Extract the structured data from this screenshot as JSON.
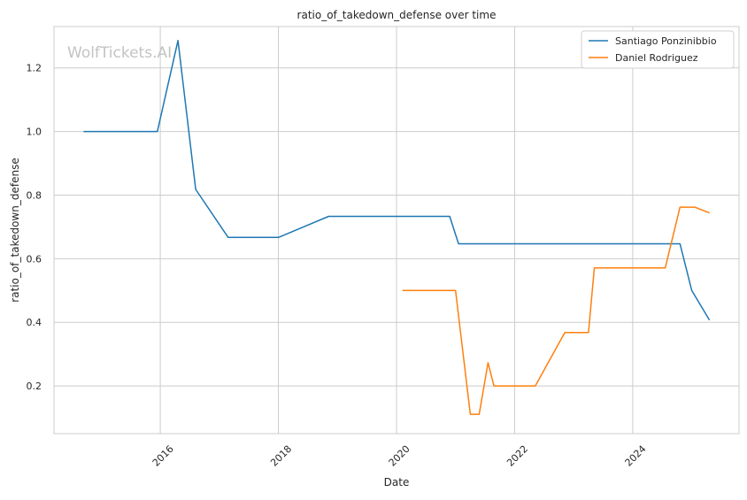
{
  "chart_data": {
    "type": "line",
    "title": "ratio_of_takedown_defense over time",
    "xlabel": "Date",
    "ylabel": "ratio_of_takedown_defense",
    "watermark": "WolfTickets.AI",
    "xlim": [
      2014.2,
      2025.8
    ],
    "ylim": [
      0.05,
      1.33
    ],
    "x_ticks": [
      {
        "value": 2016,
        "label": "2016"
      },
      {
        "value": 2018,
        "label": "2018"
      },
      {
        "value": 2020,
        "label": "2020"
      },
      {
        "value": 2022,
        "label": "2022"
      },
      {
        "value": 2024,
        "label": "2024"
      }
    ],
    "y_ticks": [
      {
        "value": 0.2,
        "label": "0.2"
      },
      {
        "value": 0.4,
        "label": "0.4"
      },
      {
        "value": 0.6,
        "label": "0.6"
      },
      {
        "value": 0.8,
        "label": "0.8"
      },
      {
        "value": 1.0,
        "label": "1.0"
      },
      {
        "value": 1.2,
        "label": "1.2"
      }
    ],
    "grid": true,
    "legend_position": "top-right",
    "series": [
      {
        "name": "Santiago Ponzinibbio",
        "color": "#1f77b4",
        "points": [
          {
            "x": 2014.7,
            "y": 1.0
          },
          {
            "x": 2015.95,
            "y": 1.0
          },
          {
            "x": 2016.3,
            "y": 1.286
          },
          {
            "x": 2016.6,
            "y": 0.818
          },
          {
            "x": 2017.15,
            "y": 0.667
          },
          {
            "x": 2018.0,
            "y": 0.667
          },
          {
            "x": 2018.85,
            "y": 0.733
          },
          {
            "x": 2020.9,
            "y": 0.733
          },
          {
            "x": 2021.05,
            "y": 0.647
          },
          {
            "x": 2024.8,
            "y": 0.647
          },
          {
            "x": 2025.0,
            "y": 0.5
          },
          {
            "x": 2025.3,
            "y": 0.407
          }
        ]
      },
      {
        "name": "Daniel Rodriguez",
        "color": "#ff7f0e",
        "points": [
          {
            "x": 2020.1,
            "y": 0.5
          },
          {
            "x": 2021.0,
            "y": 0.5
          },
          {
            "x": 2021.25,
            "y": 0.111
          },
          {
            "x": 2021.4,
            "y": 0.111
          },
          {
            "x": 2021.55,
            "y": 0.273
          },
          {
            "x": 2021.65,
            "y": 0.2
          },
          {
            "x": 2022.35,
            "y": 0.2
          },
          {
            "x": 2022.85,
            "y": 0.368
          },
          {
            "x": 2023.25,
            "y": 0.368
          },
          {
            "x": 2023.35,
            "y": 0.571
          },
          {
            "x": 2024.55,
            "y": 0.571
          },
          {
            "x": 2024.8,
            "y": 0.762
          },
          {
            "x": 2025.05,
            "y": 0.762
          },
          {
            "x": 2025.3,
            "y": 0.744
          }
        ]
      }
    ]
  }
}
